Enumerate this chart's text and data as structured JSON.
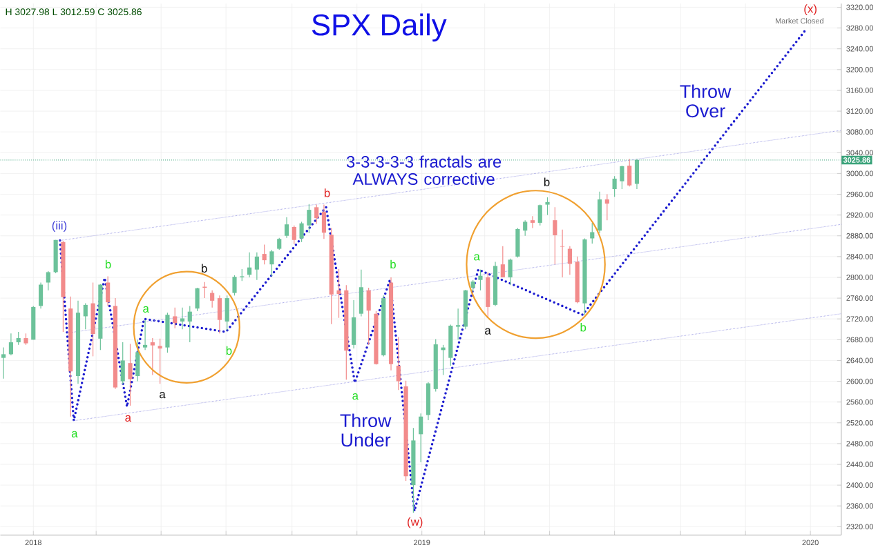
{
  "chart_data": {
    "type": "candlestick",
    "title": "SPX Daily",
    "xlim": [
      "2017-12-01",
      "2020-01-30"
    ],
    "xticks": [
      {
        "value": "2018-01-01",
        "label": "2018"
      },
      {
        "value": "2018-03-01",
        "label": null
      },
      {
        "value": "2018-05-01",
        "label": null
      },
      {
        "value": "2018-07-01",
        "label": null
      },
      {
        "value": "2018-09-01",
        "label": null
      },
      {
        "value": "2018-11-01",
        "label": null
      },
      {
        "value": "2019-01-01",
        "label": "2019"
      },
      {
        "value": "2019-03-01",
        "label": null
      },
      {
        "value": "2019-05-01",
        "label": null
      },
      {
        "value": "2019-07-01",
        "label": null
      },
      {
        "value": "2019-09-01",
        "label": null
      },
      {
        "value": "2019-11-01",
        "label": null
      },
      {
        "value": "2020-01-01",
        "label": "2020"
      }
    ],
    "ylim": [
      2304,
      3327
    ],
    "yticks": [
      {
        "value": 2320,
        "label": "2320.00"
      },
      {
        "value": 2360,
        "label": "2360.00"
      },
      {
        "value": 2400,
        "label": "2400.00"
      },
      {
        "value": 2440,
        "label": "2440.00"
      },
      {
        "value": 2480,
        "label": "2480.00"
      },
      {
        "value": 2520,
        "label": "2520.00"
      },
      {
        "value": 2560,
        "label": "2560.00"
      },
      {
        "value": 2600,
        "label": "2600.00"
      },
      {
        "value": 2640,
        "label": "2640.00"
      },
      {
        "value": 2680,
        "label": "2680.00"
      },
      {
        "value": 2720,
        "label": "2720.00"
      },
      {
        "value": 2760,
        "label": "2760.00"
      },
      {
        "value": 2800,
        "label": "2800.00"
      },
      {
        "value": 2840,
        "label": "2840.00"
      },
      {
        "value": 2880,
        "label": "2880.00"
      },
      {
        "value": 2920,
        "label": "2920.00"
      },
      {
        "value": 2960,
        "label": "2960.00"
      },
      {
        "value": 3000,
        "label": "3000.00"
      },
      {
        "value": 3040,
        "label": "3040.00"
      },
      {
        "value": 3080,
        "label": "3080.00"
      },
      {
        "value": 3120,
        "label": "3120.00"
      },
      {
        "value": 3160,
        "label": "3160.00"
      },
      {
        "value": 3200,
        "label": "3200.00"
      },
      {
        "value": 3240,
        "label": "3240.00"
      },
      {
        "value": 3280,
        "label": "3280.00"
      },
      {
        "value": 3320,
        "label": "3320.00"
      }
    ],
    "grid": true,
    "x": [
      "2017-12-04",
      "2017-12-11",
      "2017-12-18",
      "2017-12-25",
      "2018-01-01",
      "2018-01-08",
      "2018-01-15",
      "2018-01-22",
      "2018-01-29",
      "2018-02-05",
      "2018-02-12",
      "2018-02-19",
      "2018-02-26",
      "2018-03-05",
      "2018-03-12",
      "2018-03-19",
      "2018-03-26",
      "2018-04-02",
      "2018-04-09",
      "2018-04-16",
      "2018-04-23",
      "2018-04-30",
      "2018-05-07",
      "2018-05-14",
      "2018-05-21",
      "2018-05-28",
      "2018-06-04",
      "2018-06-11",
      "2018-06-18",
      "2018-06-25",
      "2018-07-02",
      "2018-07-09",
      "2018-07-16",
      "2018-07-23",
      "2018-07-30",
      "2018-08-06",
      "2018-08-13",
      "2018-08-20",
      "2018-08-27",
      "2018-09-03",
      "2018-09-10",
      "2018-09-17",
      "2018-09-24",
      "2018-10-01",
      "2018-10-08",
      "2018-10-15",
      "2018-10-22",
      "2018-10-29",
      "2018-11-05",
      "2018-11-12",
      "2018-11-19",
      "2018-11-26",
      "2018-12-03",
      "2018-12-10",
      "2018-12-17",
      "2018-12-24",
      "2018-12-31",
      "2019-01-07",
      "2019-01-14",
      "2019-01-21",
      "2019-01-28",
      "2019-02-04",
      "2019-02-11",
      "2019-02-18",
      "2019-02-25",
      "2019-03-04",
      "2019-03-11",
      "2019-03-18",
      "2019-03-25",
      "2019-04-01",
      "2019-04-08",
      "2019-04-15",
      "2019-04-22",
      "2019-04-29",
      "2019-05-06",
      "2019-05-13",
      "2019-05-20",
      "2019-05-27",
      "2019-06-03",
      "2019-06-10",
      "2019-06-17",
      "2019-06-24",
      "2019-07-01",
      "2019-07-08",
      "2019-07-15",
      "2019-07-22"
    ],
    "ohlc": [
      [
        2645,
        2665,
        2605,
        2652
      ],
      [
        2652,
        2692,
        2650,
        2675
      ],
      [
        2675,
        2695,
        2670,
        2683
      ],
      [
        2683,
        2692,
        2670,
        2673
      ],
      [
        2680,
        2745,
        2680,
        2743
      ],
      [
        2745,
        2790,
        2740,
        2786
      ],
      [
        2790,
        2812,
        2775,
        2810
      ],
      [
        2810,
        2872,
        2808,
        2872
      ],
      [
        2868,
        2870,
        2695,
        2762
      ],
      [
        2740,
        2763,
        2532,
        2619
      ],
      [
        2610,
        2755,
        2595,
        2732
      ],
      [
        2725,
        2750,
        2700,
        2747
      ],
      [
        2750,
        2790,
        2648,
        2691
      ],
      [
        2682,
        2787,
        2660,
        2786
      ],
      [
        2790,
        2802,
        2745,
        2752
      ],
      [
        2745,
        2760,
        2585,
        2588
      ],
      [
        2600,
        2675,
        2594,
        2640
      ],
      [
        2635,
        2672,
        2553,
        2604
      ],
      [
        2610,
        2680,
        2600,
        2656
      ],
      [
        2665,
        2718,
        2660,
        2670
      ],
      [
        2675,
        2683,
        2612,
        2669
      ],
      [
        2668,
        2682,
        2595,
        2663
      ],
      [
        2665,
        2732,
        2655,
        2728
      ],
      [
        2725,
        2742,
        2702,
        2712
      ],
      [
        2715,
        2742,
        2700,
        2721
      ],
      [
        2715,
        2745,
        2675,
        2734
      ],
      [
        2740,
        2780,
        2735,
        2779
      ],
      [
        2782,
        2791,
        2760,
        2780
      ],
      [
        2770,
        2775,
        2742,
        2755
      ],
      [
        2760,
        2765,
        2692,
        2718
      ],
      [
        2715,
        2765,
        2698,
        2760
      ],
      [
        2770,
        2804,
        2765,
        2801
      ],
      [
        2800,
        2816,
        2793,
        2802
      ],
      [
        2805,
        2848,
        2800,
        2819
      ],
      [
        2815,
        2848,
        2795,
        2840
      ],
      [
        2845,
        2863,
        2825,
        2833
      ],
      [
        2825,
        2853,
        2802,
        2850
      ],
      [
        2855,
        2876,
        2853,
        2874
      ],
      [
        2880,
        2916,
        2876,
        2902
      ],
      [
        2897,
        2900,
        2864,
        2872
      ],
      [
        2875,
        2907,
        2868,
        2904
      ],
      [
        2900,
        2941,
        2885,
        2930
      ],
      [
        2935,
        2940,
        2903,
        2914
      ],
      [
        2926,
        2940,
        2874,
        2886
      ],
      [
        2882,
        2895,
        2710,
        2767
      ],
      [
        2775,
        2816,
        2722,
        2768
      ],
      [
        2775,
        2785,
        2603,
        2659
      ],
      [
        2670,
        2756,
        2663,
        2723
      ],
      [
        2730,
        2815,
        2725,
        2781
      ],
      [
        2775,
        2780,
        2670,
        2736
      ],
      [
        2730,
        2735,
        2632,
        2633
      ],
      [
        2650,
        2765,
        2648,
        2760
      ],
      [
        2790,
        2800,
        2621,
        2633
      ],
      [
        2630,
        2685,
        2583,
        2600
      ],
      [
        2590,
        2601,
        2408,
        2417
      ],
      [
        2400,
        2510,
        2347,
        2486
      ],
      [
        2498,
        2538,
        2444,
        2532
      ],
      [
        2535,
        2598,
        2525,
        2596
      ],
      [
        2585,
        2681,
        2580,
        2671
      ],
      [
        2660,
        2670,
        2612,
        2665
      ],
      [
        2645,
        2709,
        2630,
        2707
      ],
      [
        2705,
        2740,
        2680,
        2708
      ],
      [
        2705,
        2776,
        2700,
        2775
      ],
      [
        2780,
        2795,
        2773,
        2792
      ],
      [
        2795,
        2815,
        2775,
        2803
      ],
      [
        2800,
        2810,
        2722,
        2743
      ],
      [
        2747,
        2830,
        2745,
        2822
      ],
      [
        2825,
        2860,
        2800,
        2800
      ],
      [
        2800,
        2836,
        2785,
        2834
      ],
      [
        2840,
        2895,
        2838,
        2893
      ],
      [
        2890,
        2910,
        2880,
        2907
      ],
      [
        2910,
        2918,
        2895,
        2905
      ],
      [
        2905,
        2940,
        2900,
        2939
      ],
      [
        2940,
        2954,
        2920,
        2945
      ],
      [
        2910,
        2935,
        2825,
        2881
      ],
      [
        2860,
        2892,
        2800,
        2859
      ],
      [
        2855,
        2860,
        2805,
        2826
      ],
      [
        2830,
        2840,
        2750,
        2752
      ],
      [
        2750,
        2875,
        2728,
        2873
      ],
      [
        2875,
        2905,
        2865,
        2887
      ],
      [
        2890,
        2965,
        2885,
        2950
      ],
      [
        2950,
        2960,
        2910,
        2942
      ],
      [
        2970,
        2995,
        2955,
        2990
      ],
      [
        2985,
        3015,
        2970,
        3014
      ],
      [
        3015,
        3028,
        2975,
        2977
      ],
      [
        2980,
        3027.98,
        2970,
        3025.86
      ]
    ],
    "series": [
      {
        "type": "line",
        "color": "#1c1cd0",
        "line_style": "dotted",
        "marker": "none",
        "x": [
          "2018-01-26",
          "2018-02-08",
          "2018-03-09",
          "2018-03-30",
          "2018-04-15",
          "2018-07-01",
          "2018-10-03",
          "2018-10-30",
          "2018-12-02",
          "2018-12-25",
          "2019-02-23",
          "2019-06-01",
          "2019-12-27"
        ],
        "values": [
          2871,
          2524,
          2799,
          2551,
          2720,
          2695,
          2935,
          2597,
          2795,
          2350,
          2815,
          2728,
          3275
        ]
      },
      {
        "type": "line",
        "color": "#8a8ae0",
        "line_style": "dotted",
        "marker": "none",
        "x": [
          "2018-01-26",
          "2020-01-30"
        ],
        "values": [
          2871,
          3083
        ]
      },
      {
        "type": "line",
        "color": "#8a8ae0",
        "line_style": "dotted",
        "marker": "none",
        "x": [
          "2018-02-02",
          "2020-01-30"
        ],
        "values": [
          2693,
          2902
        ]
      },
      {
        "type": "line",
        "color": "#8a8ae0",
        "line_style": "dotted",
        "marker": "none",
        "x": [
          "2018-02-08",
          "2020-01-30"
        ],
        "values": [
          2524,
          2730
        ]
      }
    ],
    "ref_lines": [
      {
        "axis": "y",
        "value": 3025.86,
        "label": "3025.86",
        "color": "#3aa37a",
        "line_style": "dotted"
      }
    ],
    "annotations": [
      "H 3027.98  L 3012.59  C 3025.86",
      "Market Closed",
      "Throw Under",
      "Throw Over",
      "3-3-3-3-3 fractals are ALWAYS corrective",
      "(iii)",
      "a",
      "b",
      "a",
      "a",
      "a",
      "b",
      "b",
      "b",
      "a",
      "b",
      "(w)",
      "a",
      "a",
      "b",
      "b",
      "(x)"
    ]
  }
}
